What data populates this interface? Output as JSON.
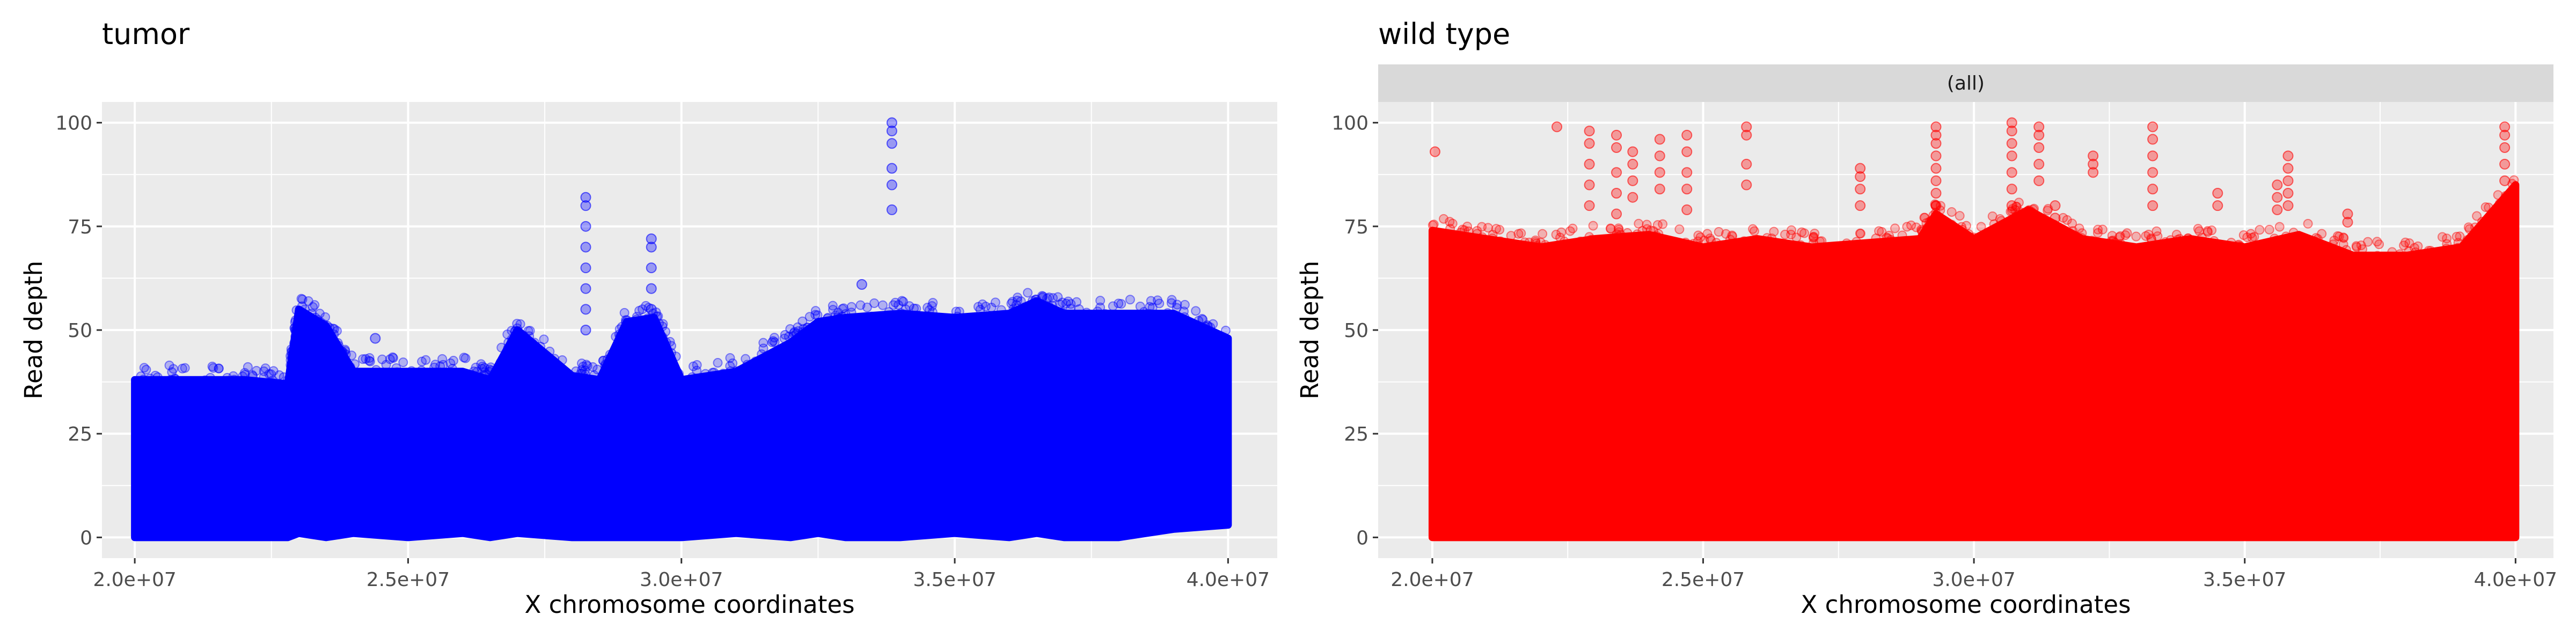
{
  "chart_data": [
    {
      "type": "scatter",
      "title": "tumor",
      "strip": "",
      "xlabel": "X chromosome coordinates",
      "ylabel": "Read depth",
      "x_ticks": [
        "2.0e+07",
        "2.5e+07",
        "3.0e+07",
        "3.5e+07",
        "4.0e+07"
      ],
      "y_ticks": [
        "0",
        "25",
        "50",
        "75",
        "100"
      ],
      "xlim": [
        19400000,
        40900000
      ],
      "ylim": [
        -5,
        105
      ],
      "color": "#0000ff",
      "series": [
        {
          "x": [
            20000000,
            21000000,
            22000000,
            22800000,
            23000000,
            23500000,
            24000000,
            25000000,
            26000000,
            26500000,
            27000000,
            28000000,
            28500000,
            29000000,
            29500000,
            30000000,
            31000000,
            32000000,
            32500000,
            33000000,
            34000000,
            35000000,
            36000000,
            36500000,
            37000000,
            38000000,
            39000000,
            40000000
          ],
          "y_max": [
            38,
            38,
            38,
            37,
            55,
            51,
            40,
            40,
            40,
            38,
            50,
            39,
            38,
            52,
            53,
            38,
            40,
            47,
            52,
            53,
            54,
            53,
            54,
            57,
            54,
            54,
            54,
            48
          ],
          "y_min": [
            0,
            0,
            0,
            0,
            1,
            0,
            1,
            0,
            1,
            0,
            1,
            0,
            0,
            0,
            0,
            0,
            1,
            0,
            1,
            0,
            0,
            1,
            0,
            1,
            0,
            0,
            2,
            3
          ]
        }
      ],
      "outliers": [
        {
          "x": 28250000,
          "y": [
            82,
            80,
            75,
            70,
            65,
            60,
            55,
            50
          ]
        },
        {
          "x": 29450000,
          "y": [
            72,
            70,
            65,
            60,
            55
          ]
        },
        {
          "x": 33850000,
          "y": [
            100,
            98,
            95,
            89,
            85,
            79
          ]
        },
        {
          "x": 24400000,
          "y": [
            48
          ]
        },
        {
          "x": 33300000,
          "y": [
            61
          ]
        }
      ]
    },
    {
      "type": "scatter",
      "title": "wild type",
      "strip": "(all)",
      "xlabel": "X chromosome coordinates",
      "ylabel": "Read depth",
      "x_ticks": [
        "2.0e+07",
        "2.5e+07",
        "3.0e+07",
        "3.5e+07",
        "4.0e+07"
      ],
      "y_ticks": [
        "0",
        "25",
        "50",
        "75",
        "100"
      ],
      "xlim": [
        19000000,
        40700000
      ],
      "ylim": [
        -5,
        105
      ],
      "color": "#ff0000",
      "series": [
        {
          "x": [
            20000000,
            21000000,
            22000000,
            23000000,
            24000000,
            25000000,
            26000000,
            27000000,
            28000000,
            29000000,
            29300000,
            30000000,
            31000000,
            32000000,
            33000000,
            34000000,
            35000000,
            36000000,
            37000000,
            38000000,
            39000000,
            40000000
          ],
          "y_max": [
            74,
            72,
            70,
            72,
            73,
            70,
            72,
            70,
            71,
            72,
            78,
            72,
            79,
            72,
            70,
            72,
            70,
            73,
            68,
            68,
            70,
            85
          ],
          "y_min": [
            0,
            0,
            0,
            0,
            0,
            0,
            0,
            0,
            0,
            0,
            0,
            0,
            0,
            0,
            0,
            0,
            0,
            0,
            0,
            0,
            0,
            0
          ]
        }
      ],
      "outliers": [
        {
          "x": 20050000,
          "y": [
            93
          ]
        },
        {
          "x": 22300000,
          "y": [
            99
          ]
        },
        {
          "x": 22900000,
          "y": [
            98,
            95,
            90,
            85,
            80
          ]
        },
        {
          "x": 23400000,
          "y": [
            97,
            94,
            88,
            83,
            78
          ]
        },
        {
          "x": 23700000,
          "y": [
            93,
            90,
            86,
            82
          ]
        },
        {
          "x": 24200000,
          "y": [
            96,
            92,
            88,
            84
          ]
        },
        {
          "x": 24700000,
          "y": [
            97,
            93,
            88,
            84,
            79
          ]
        },
        {
          "x": 25800000,
          "y": [
            99,
            97,
            90,
            85
          ]
        },
        {
          "x": 27900000,
          "y": [
            89,
            87,
            84,
            80
          ]
        },
        {
          "x": 29300000,
          "y": [
            99,
            97,
            95,
            92,
            89,
            86,
            83,
            80
          ]
        },
        {
          "x": 30700000,
          "y": [
            100,
            98,
            95,
            92,
            88,
            84,
            80
          ]
        },
        {
          "x": 31200000,
          "y": [
            99,
            97,
            94,
            90,
            86
          ]
        },
        {
          "x": 31500000,
          "y": [
            80,
            77
          ]
        },
        {
          "x": 32200000,
          "y": [
            92,
            90,
            88
          ]
        },
        {
          "x": 33300000,
          "y": [
            99,
            96,
            92,
            88,
            84,
            80
          ]
        },
        {
          "x": 34500000,
          "y": [
            83,
            80
          ]
        },
        {
          "x": 35800000,
          "y": [
            92,
            89,
            86,
            83,
            80
          ]
        },
        {
          "x": 35600000,
          "y": [
            85,
            82,
            79
          ]
        },
        {
          "x": 39800000,
          "y": [
            99,
            97,
            94,
            90,
            86
          ]
        },
        {
          "x": 36900000,
          "y": [
            78,
            76
          ]
        }
      ]
    }
  ]
}
